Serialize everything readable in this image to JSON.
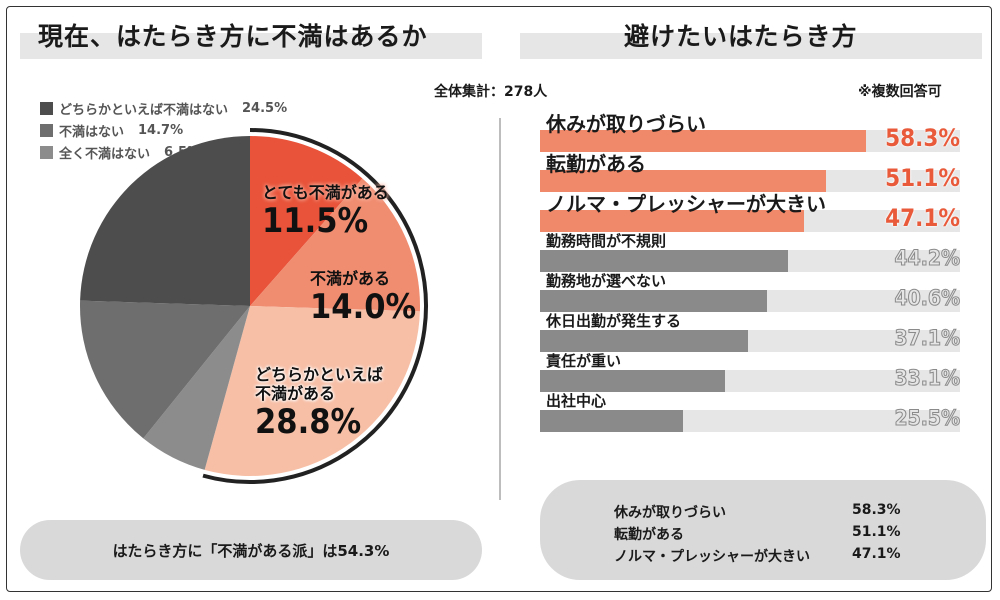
{
  "left": {
    "title": "現在、はたらき方に不満はあるか",
    "legend": [
      {
        "label": "どちらかといえば不満はない",
        "value": "24.5%",
        "color": "#4d4d4d"
      },
      {
        "label": "不満はない",
        "value": "14.7%",
        "color": "#6e6e6e"
      },
      {
        "label": "全く不満はない",
        "value": "6.5%",
        "color": "#8c8c8c"
      }
    ],
    "slices": [
      {
        "text": "とても不満がある",
        "pct": "11.5%"
      },
      {
        "text": "不満がある",
        "pct": "14.0%"
      },
      {
        "text_line1": "どちらかといえば",
        "text_line2": "不満がある",
        "pct": "28.8%"
      }
    ],
    "summary": "はたらき方に「不満がある派」は54.3%"
  },
  "right": {
    "title": "避けたいはたらき方",
    "total": "全体集計：278人",
    "note": "※複数回答可",
    "summary": [
      {
        "label": "休みが取りづらい",
        "value": "58.3%"
      },
      {
        "label": "転勤がある",
        "value": "51.1%"
      },
      {
        "label": "ノルマ・プレッシャーが大きい",
        "value": "47.1%"
      }
    ]
  },
  "chart_data": [
    {
      "type": "pie",
      "title": "現在、はたらき方に不満はあるか",
      "categories": [
        "とても不満がある",
        "不満がある",
        "どちらかといえば不満がある",
        "全く不満はない",
        "不満はない",
        "どちらかといえば不満はない"
      ],
      "values": [
        11.5,
        14.0,
        28.8,
        6.5,
        14.7,
        24.5
      ],
      "colors": [
        "#e8533a",
        "#f08c70",
        "#f7bfa6",
        "#8c8c8c",
        "#6e6e6e",
        "#4d4d4d"
      ],
      "unit": "%",
      "legend_position": "top-left"
    },
    {
      "type": "bar",
      "orientation": "horizontal",
      "title": "避けたいはたらき方",
      "categories": [
        "休みが取りづらい",
        "転勤がある",
        "ノルマ・プレッシャーが大きい",
        "勤務時間が不規則",
        "勤務地が選べない",
        "休日出勤が発生する",
        "責任が重い",
        "出社中心"
      ],
      "values": [
        58.3,
        51.1,
        47.1,
        44.2,
        40.6,
        37.1,
        33.1,
        25.5
      ],
      "labels": [
        "58.3%",
        "51.1%",
        "47.1%",
        "44.2%",
        "40.6%",
        "37.1%",
        "33.1%",
        "25.5%"
      ],
      "highlight_top": 3,
      "xlim": [
        0,
        75
      ],
      "unit": "%"
    }
  ]
}
